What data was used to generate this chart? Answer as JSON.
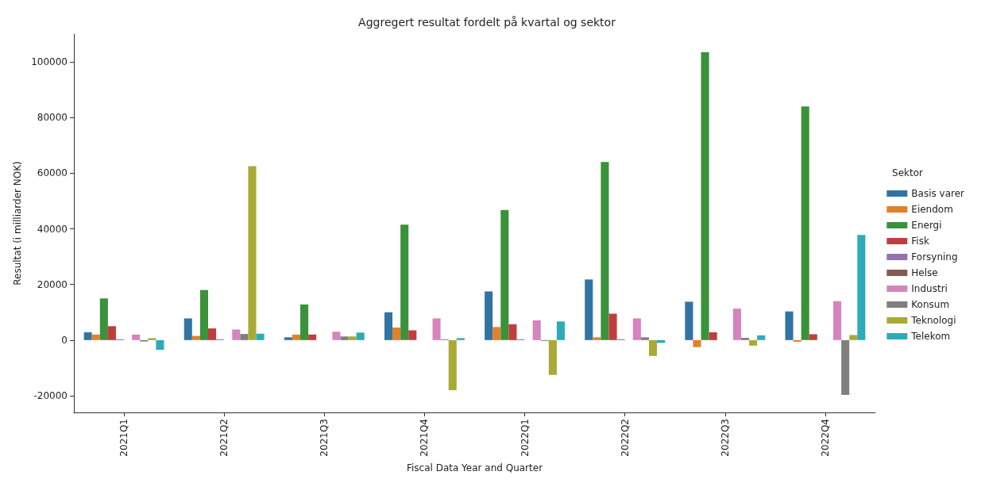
{
  "chart_data": {
    "type": "bar",
    "title": "Aggregert resultat fordelt på kvartal og sektor",
    "xlabel": "Fiscal Data Year and Quarter",
    "ylabel": "Resultat (i milliarder NOK)",
    "legend_title": "Sektor",
    "legend": "right",
    "grid": false,
    "categories": [
      "2021Q1",
      "2021Q2",
      "2021Q3",
      "2021Q4",
      "2022Q1",
      "2022Q2",
      "2022Q3",
      "2022Q4"
    ],
    "ylim": [
      -26000,
      110000
    ],
    "yticks": [
      -20000,
      0,
      20000,
      40000,
      60000,
      80000,
      100000
    ],
    "series": [
      {
        "name": "Basis varer",
        "color": "#3274a1",
        "values": [
          2800,
          7800,
          1000,
          10000,
          17500,
          21800,
          13800,
          10300
        ]
      },
      {
        "name": "Eiendom",
        "color": "#e1812c",
        "values": [
          2000,
          1500,
          2000,
          4500,
          4700,
          1000,
          -2500,
          -600
        ]
      },
      {
        "name": "Energi",
        "color": "#3a923a",
        "values": [
          15000,
          18000,
          12800,
          41500,
          46800,
          64000,
          103500,
          84000
        ]
      },
      {
        "name": "Fisk",
        "color": "#c03d3e",
        "values": [
          5000,
          4200,
          2000,
          3500,
          5700,
          9500,
          2800,
          2100
        ]
      },
      {
        "name": "Forsyning",
        "color": "#9372b2",
        "values": [
          300,
          300,
          0,
          0,
          300,
          300,
          0,
          0
        ]
      },
      {
        "name": "Helse",
        "color": "#845b53",
        "values": [
          0,
          0,
          0,
          0,
          0,
          0,
          0,
          0
        ]
      },
      {
        "name": "Industri",
        "color": "#d684bd",
        "values": [
          2000,
          3800,
          3000,
          7800,
          7100,
          7800,
          11300,
          14000
        ]
      },
      {
        "name": "Konsum",
        "color": "#7f7f7f",
        "values": [
          -500,
          2200,
          1300,
          300,
          -300,
          1000,
          800,
          -19700
        ]
      },
      {
        "name": "Teknologi",
        "color": "#a9aa35",
        "values": [
          700,
          62500,
          1300,
          -18000,
          -12500,
          -5700,
          -2000,
          1800
        ]
      },
      {
        "name": "Telekom",
        "color": "#2eabb8",
        "values": [
          -3500,
          2300,
          2700,
          700,
          6700,
          -1000,
          1700,
          37800
        ]
      }
    ]
  }
}
